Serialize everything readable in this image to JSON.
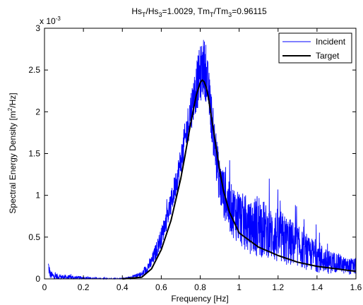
{
  "chart_data": {
    "type": "line",
    "title_parts": {
      "hs_t": "Hs",
      "sub_t": "T",
      "slash1": "/Hs",
      "sub_3a": "3",
      "hs_value": "=1.0029, Tm",
      "sub_t2": "T",
      "slash2": "/Tm",
      "sub_3b": "3",
      "tm_value": "=0.96115"
    },
    "xlabel": "Frequency [Hz]",
    "ylabel_parts": {
      "main": "Spectral Energy Density [m",
      "sup": "2",
      "tail": "/Hz]"
    },
    "y_multiplier": {
      "base": "x 10",
      "exp": "-3"
    },
    "xlim": [
      0,
      1.6
    ],
    "ylim": [
      0,
      3
    ],
    "x_ticks": [
      0,
      0.2,
      0.4,
      0.6,
      0.8,
      1,
      1.2,
      1.4,
      1.6
    ],
    "x_tick_labels": [
      "0",
      "0.2",
      "0.4",
      "0.6",
      "0.8",
      "1",
      "1.2",
      "1.4",
      "1.6"
    ],
    "y_ticks": [
      0,
      0.5,
      1,
      1.5,
      2,
      2.5,
      3
    ],
    "y_tick_labels": [
      "0",
      "0.5",
      "1",
      "1.5",
      "2",
      "2.5",
      "3"
    ],
    "grid": false,
    "legend_position": "top-right",
    "series": [
      {
        "name": "Incident",
        "color": "#0000ff",
        "style": "noisy-line",
        "x": [
          0.02,
          0.03,
          0.05,
          0.1,
          0.2,
          0.3,
          0.4,
          0.45,
          0.5,
          0.55,
          0.6,
          0.65,
          0.7,
          0.75,
          0.78,
          0.8,
          0.82,
          0.84,
          0.86,
          0.88,
          0.9,
          0.95,
          1.0,
          1.05,
          1.1,
          1.15,
          1.2,
          1.25,
          1.3,
          1.35,
          1.4,
          1.45,
          1.5,
          1.55,
          1.6
        ],
        "y": [
          0.15,
          0.05,
          0.03,
          0.02,
          0.01,
          0.0,
          0.0,
          0.02,
          0.05,
          0.2,
          0.5,
          0.9,
          1.4,
          2.0,
          2.3,
          2.45,
          2.55,
          2.3,
          1.9,
          1.5,
          1.15,
          0.85,
          0.75,
          0.6,
          0.65,
          0.55,
          0.5,
          0.45,
          0.4,
          0.3,
          0.28,
          0.2,
          0.2,
          0.15,
          0.15
        ],
        "noise_amp": [
          0.1,
          0.05,
          0.04,
          0.03,
          0.02,
          0.01,
          0.01,
          0.02,
          0.04,
          0.08,
          0.12,
          0.15,
          0.2,
          0.25,
          0.3,
          0.35,
          0.35,
          0.3,
          0.28,
          0.28,
          0.3,
          0.3,
          0.35,
          0.3,
          0.4,
          0.3,
          0.35,
          0.3,
          0.25,
          0.2,
          0.2,
          0.15,
          0.12,
          0.1,
          0.1
        ]
      },
      {
        "name": "Target",
        "color": "#000000",
        "style": "smooth-line",
        "x": [
          0.4,
          0.5,
          0.55,
          0.6,
          0.65,
          0.7,
          0.72,
          0.75,
          0.78,
          0.8,
          0.81,
          0.82,
          0.83,
          0.84,
          0.85,
          0.86,
          0.88,
          0.9,
          0.92,
          0.95,
          1.0,
          1.1,
          1.2,
          1.3,
          1.4,
          1.5,
          1.6
        ],
        "y": [
          0.0,
          0.02,
          0.12,
          0.35,
          0.7,
          1.2,
          1.45,
          1.85,
          2.2,
          2.35,
          2.38,
          2.36,
          2.3,
          2.2,
          2.05,
          1.9,
          1.6,
          1.3,
          1.05,
          0.8,
          0.55,
          0.38,
          0.28,
          0.2,
          0.15,
          0.12,
          0.09
        ]
      }
    ]
  }
}
